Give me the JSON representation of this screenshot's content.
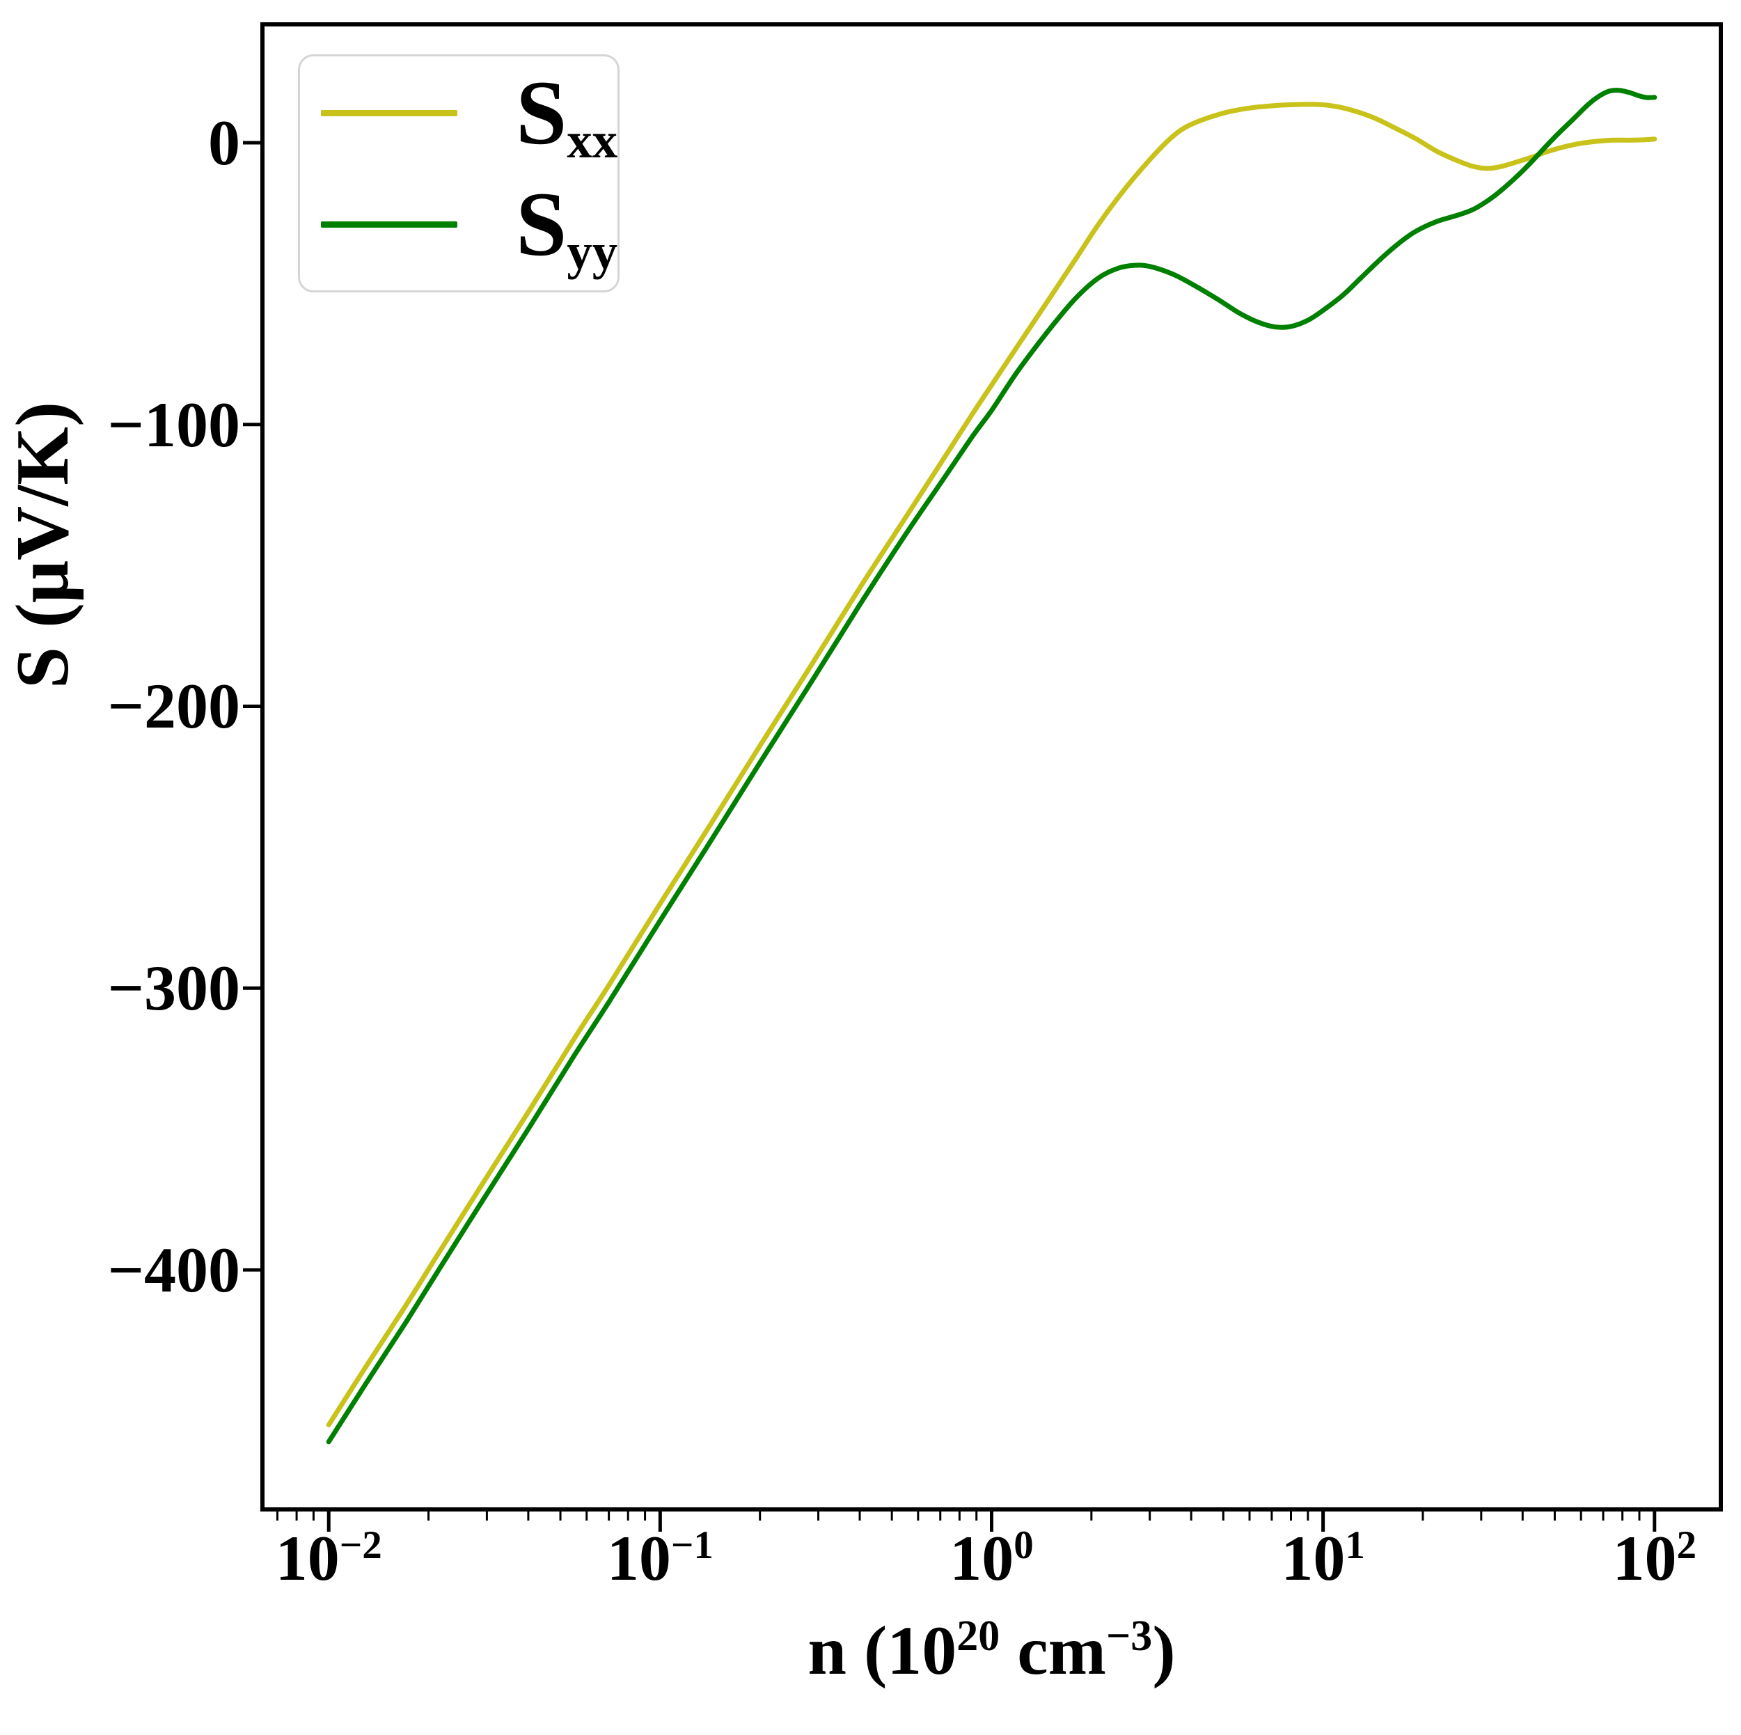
{
  "figure": {
    "background": "#ffffff",
    "frame_color": "#000000",
    "legend_border_color": "#d5d5d5"
  },
  "chart_data": {
    "type": "line",
    "title": "",
    "ylabel": "S (μV/K)",
    "xlabel_unicode": "n (10²⁰ cm⁻³)",
    "xlabel_parts": {
      "pre": "n (10",
      "sup1": "20",
      "mid": " cm",
      "sup2": "−3",
      "post": ")"
    },
    "x_scale": "log",
    "xlim_log10": [
      -2.2,
      2.2
    ],
    "ylim": [
      -485,
      42
    ],
    "grid": false,
    "legend_position": "upper left",
    "x_ticks": [
      {
        "base": "10",
        "exp": "−2",
        "value": 0.01
      },
      {
        "base": "10",
        "exp": "−1",
        "value": 0.1
      },
      {
        "base": "10",
        "exp": "0",
        "value": 1
      },
      {
        "base": "10",
        "exp": "1",
        "value": 10
      },
      {
        "base": "10",
        "exp": "2",
        "value": 100
      }
    ],
    "y_ticks": [
      {
        "label": "0",
        "value": 0
      },
      {
        "label": "−100",
        "value": -100
      },
      {
        "label": "−200",
        "value": -200
      },
      {
        "label": "−300",
        "value": -300
      },
      {
        "label": "−400",
        "value": -400
      }
    ],
    "legend": {
      "entries": [
        {
          "label_main": "S",
          "label_sub": "xx",
          "series": "Sxx"
        },
        {
          "label_main": "S",
          "label_sub": "yy",
          "series": "Syy"
        }
      ]
    },
    "series": [
      {
        "name": "Sxx",
        "color": "#c8c21a",
        "points": [
          [
            0.01,
            -455
          ],
          [
            0.013,
            -434
          ],
          [
            0.017,
            -413
          ],
          [
            0.022,
            -392
          ],
          [
            0.03,
            -367
          ],
          [
            0.04,
            -344
          ],
          [
            0.055,
            -318
          ],
          [
            0.07,
            -299
          ],
          [
            0.1,
            -270
          ],
          [
            0.14,
            -243
          ],
          [
            0.2,
            -214
          ],
          [
            0.28,
            -187
          ],
          [
            0.4,
            -158
          ],
          [
            0.55,
            -133
          ],
          [
            0.7,
            -114
          ],
          [
            0.878,
            -96
          ],
          [
            1.0,
            -86
          ],
          [
            1.2,
            -72
          ],
          [
            1.5,
            -55
          ],
          [
            1.8,
            -41
          ],
          [
            2.1,
            -29
          ],
          [
            2.5,
            -17
          ],
          [
            3.0,
            -6
          ],
          [
            3.5,
            2
          ],
          [
            4.0,
            6.5
          ],
          [
            5.0,
            10.5
          ],
          [
            6.0,
            12.3
          ],
          [
            7.0,
            13.1
          ],
          [
            8.0,
            13.5
          ],
          [
            9.3,
            13.6
          ],
          [
            10.5,
            13.2
          ],
          [
            12,
            11.8
          ],
          [
            14,
            9.2
          ],
          [
            16,
            6.0
          ],
          [
            19,
            1.5
          ],
          [
            22,
            -3
          ],
          [
            25,
            -6
          ],
          [
            28,
            -8.2
          ],
          [
            31,
            -9.1
          ],
          [
            34,
            -8.6
          ],
          [
            38,
            -7
          ],
          [
            43,
            -5
          ],
          [
            48,
            -3
          ],
          [
            54,
            -1.3
          ],
          [
            60,
            -0.2
          ],
          [
            67,
            0.5
          ],
          [
            75,
            0.9
          ],
          [
            85,
            0.9
          ],
          [
            92,
            1.0
          ],
          [
            100,
            1.3
          ]
        ]
      },
      {
        "name": "Syy",
        "color": "#008000",
        "points": [
          [
            0.01,
            -461
          ],
          [
            0.013,
            -440
          ],
          [
            0.017,
            -419
          ],
          [
            0.022,
            -398
          ],
          [
            0.03,
            -373
          ],
          [
            0.04,
            -350
          ],
          [
            0.055,
            -324
          ],
          [
            0.07,
            -305
          ],
          [
            0.1,
            -276
          ],
          [
            0.14,
            -249
          ],
          [
            0.2,
            -220
          ],
          [
            0.28,
            -193
          ],
          [
            0.4,
            -164
          ],
          [
            0.55,
            -139
          ],
          [
            0.7,
            -121
          ],
          [
            0.878,
            -104
          ],
          [
            1.0,
            -95
          ],
          [
            1.2,
            -81
          ],
          [
            1.5,
            -66
          ],
          [
            1.8,
            -55
          ],
          [
            2.1,
            -48
          ],
          [
            2.4,
            -44.6
          ],
          [
            2.7,
            -43.5
          ],
          [
            3.0,
            -43.9
          ],
          [
            3.5,
            -46.5
          ],
          [
            4.0,
            -50
          ],
          [
            4.8,
            -55.5
          ],
          [
            5.6,
            -60.5
          ],
          [
            6.4,
            -63.8
          ],
          [
            7.2,
            -65.4
          ],
          [
            8.0,
            -65.2
          ],
          [
            9.0,
            -63
          ],
          [
            10,
            -59.5
          ],
          [
            11.5,
            -54
          ],
          [
            13,
            -48
          ],
          [
            15,
            -41
          ],
          [
            17,
            -35.5
          ],
          [
            19,
            -31.5
          ],
          [
            22,
            -28
          ],
          [
            25,
            -26
          ],
          [
            28,
            -24
          ],
          [
            31,
            -21
          ],
          [
            34,
            -17.5
          ],
          [
            38,
            -12.5
          ],
          [
            42,
            -7.5
          ],
          [
            46,
            -2.5
          ],
          [
            51,
            3
          ],
          [
            57,
            8.5
          ],
          [
            63,
            13.5
          ],
          [
            68,
            16.5
          ],
          [
            73,
            18.3
          ],
          [
            78,
            18.6
          ],
          [
            84,
            17.8
          ],
          [
            90,
            16.6
          ],
          [
            95,
            16.0
          ],
          [
            100,
            16.1
          ]
        ]
      }
    ]
  }
}
